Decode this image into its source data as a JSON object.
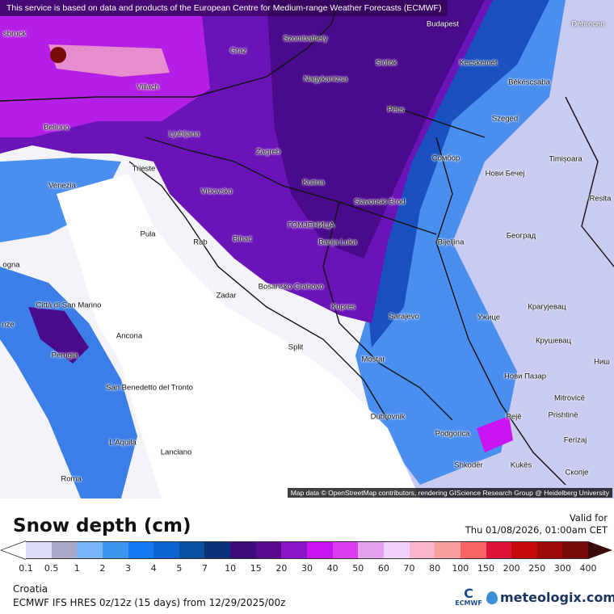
{
  "banner": "This service is based on data and products of the European Centre for Medium-range Weather Forecasts (ECMWF)",
  "map": {
    "attribution": "Map data © OpenStreetMap contributors, rendering GIScience Research Group @ Heidelberg University",
    "cities": [
      "Budapest",
      "Debrecen",
      "Szombathely",
      "Graz",
      "Siófok",
      "Kecskemét",
      "sbruck",
      "Villach",
      "Békéscsaba",
      "Nagykanizsa",
      "Ljubljana",
      "Belluno",
      "Szeged",
      "Pécs",
      "Zagreb",
      "Сомбор",
      "Нови Бечеј",
      "Timișoara",
      "Trieste",
      "Venezia",
      "Vrbovsko",
      "Kutina",
      "Slavonski Brod",
      "ГОМЈЕНИЦА",
      "Resita",
      "Banja Luka",
      "Bihać",
      "Pula",
      "Rab",
      "Bijeljina",
      "Београд",
      "ogna",
      "Bosansko Grahovo",
      "Zadar",
      "Kupres",
      "Sarajevo",
      "Città di San Marino",
      "Крагујевац",
      "Ужице",
      "nze",
      "Ancona",
      "Крушевац",
      "Split",
      "Mostar",
      "Perugia",
      "San Benedetto del Tronto",
      "Нови Пазар",
      "Ниш",
      "Mitrovicë",
      "Dubrovnik",
      "Pejë",
      "Prishtinë",
      "Podgorica",
      "L'Aquila",
      "Lanciano",
      "Ferizaj",
      "Shkodër",
      "Kukës",
      "Скопје",
      "Roma"
    ]
  },
  "legend": {
    "title": "Snow depth (cm)",
    "valid_label": "Valid for",
    "valid_time": "Thu 01/08/2026, 01:00am CET",
    "ticks": [
      "0.1",
      "0.5",
      "1",
      "2",
      "3",
      "4",
      "5",
      "7",
      "10",
      "15",
      "20",
      "30",
      "40",
      "50",
      "60",
      "70",
      "80",
      "100",
      "150",
      "200",
      "250",
      "300",
      "400"
    ],
    "colors": [
      "#dcdcf4",
      "#a8a8c8",
      "#78b4f8",
      "#3c96f0",
      "#1478f0",
      "#0a64d2",
      "#0a50a0",
      "#0a3278",
      "#3c0a78",
      "#5a0a8c",
      "#8c14c8",
      "#c814f0",
      "#dc3cf0",
      "#e6a0f0",
      "#f0d2f8",
      "#f8b4c8",
      "#f8a0a0",
      "#f86464",
      "#dc143c",
      "#c80a0a",
      "#a00a0a",
      "#7a0a0a"
    ]
  },
  "footer": {
    "region": "Croatia",
    "model": "ECMWF IFS HRES 0z/12z (15 days) from  12/29/2025/00z",
    "ecmwf_logo": "ECMWF",
    "brand": "meteologix.com"
  }
}
